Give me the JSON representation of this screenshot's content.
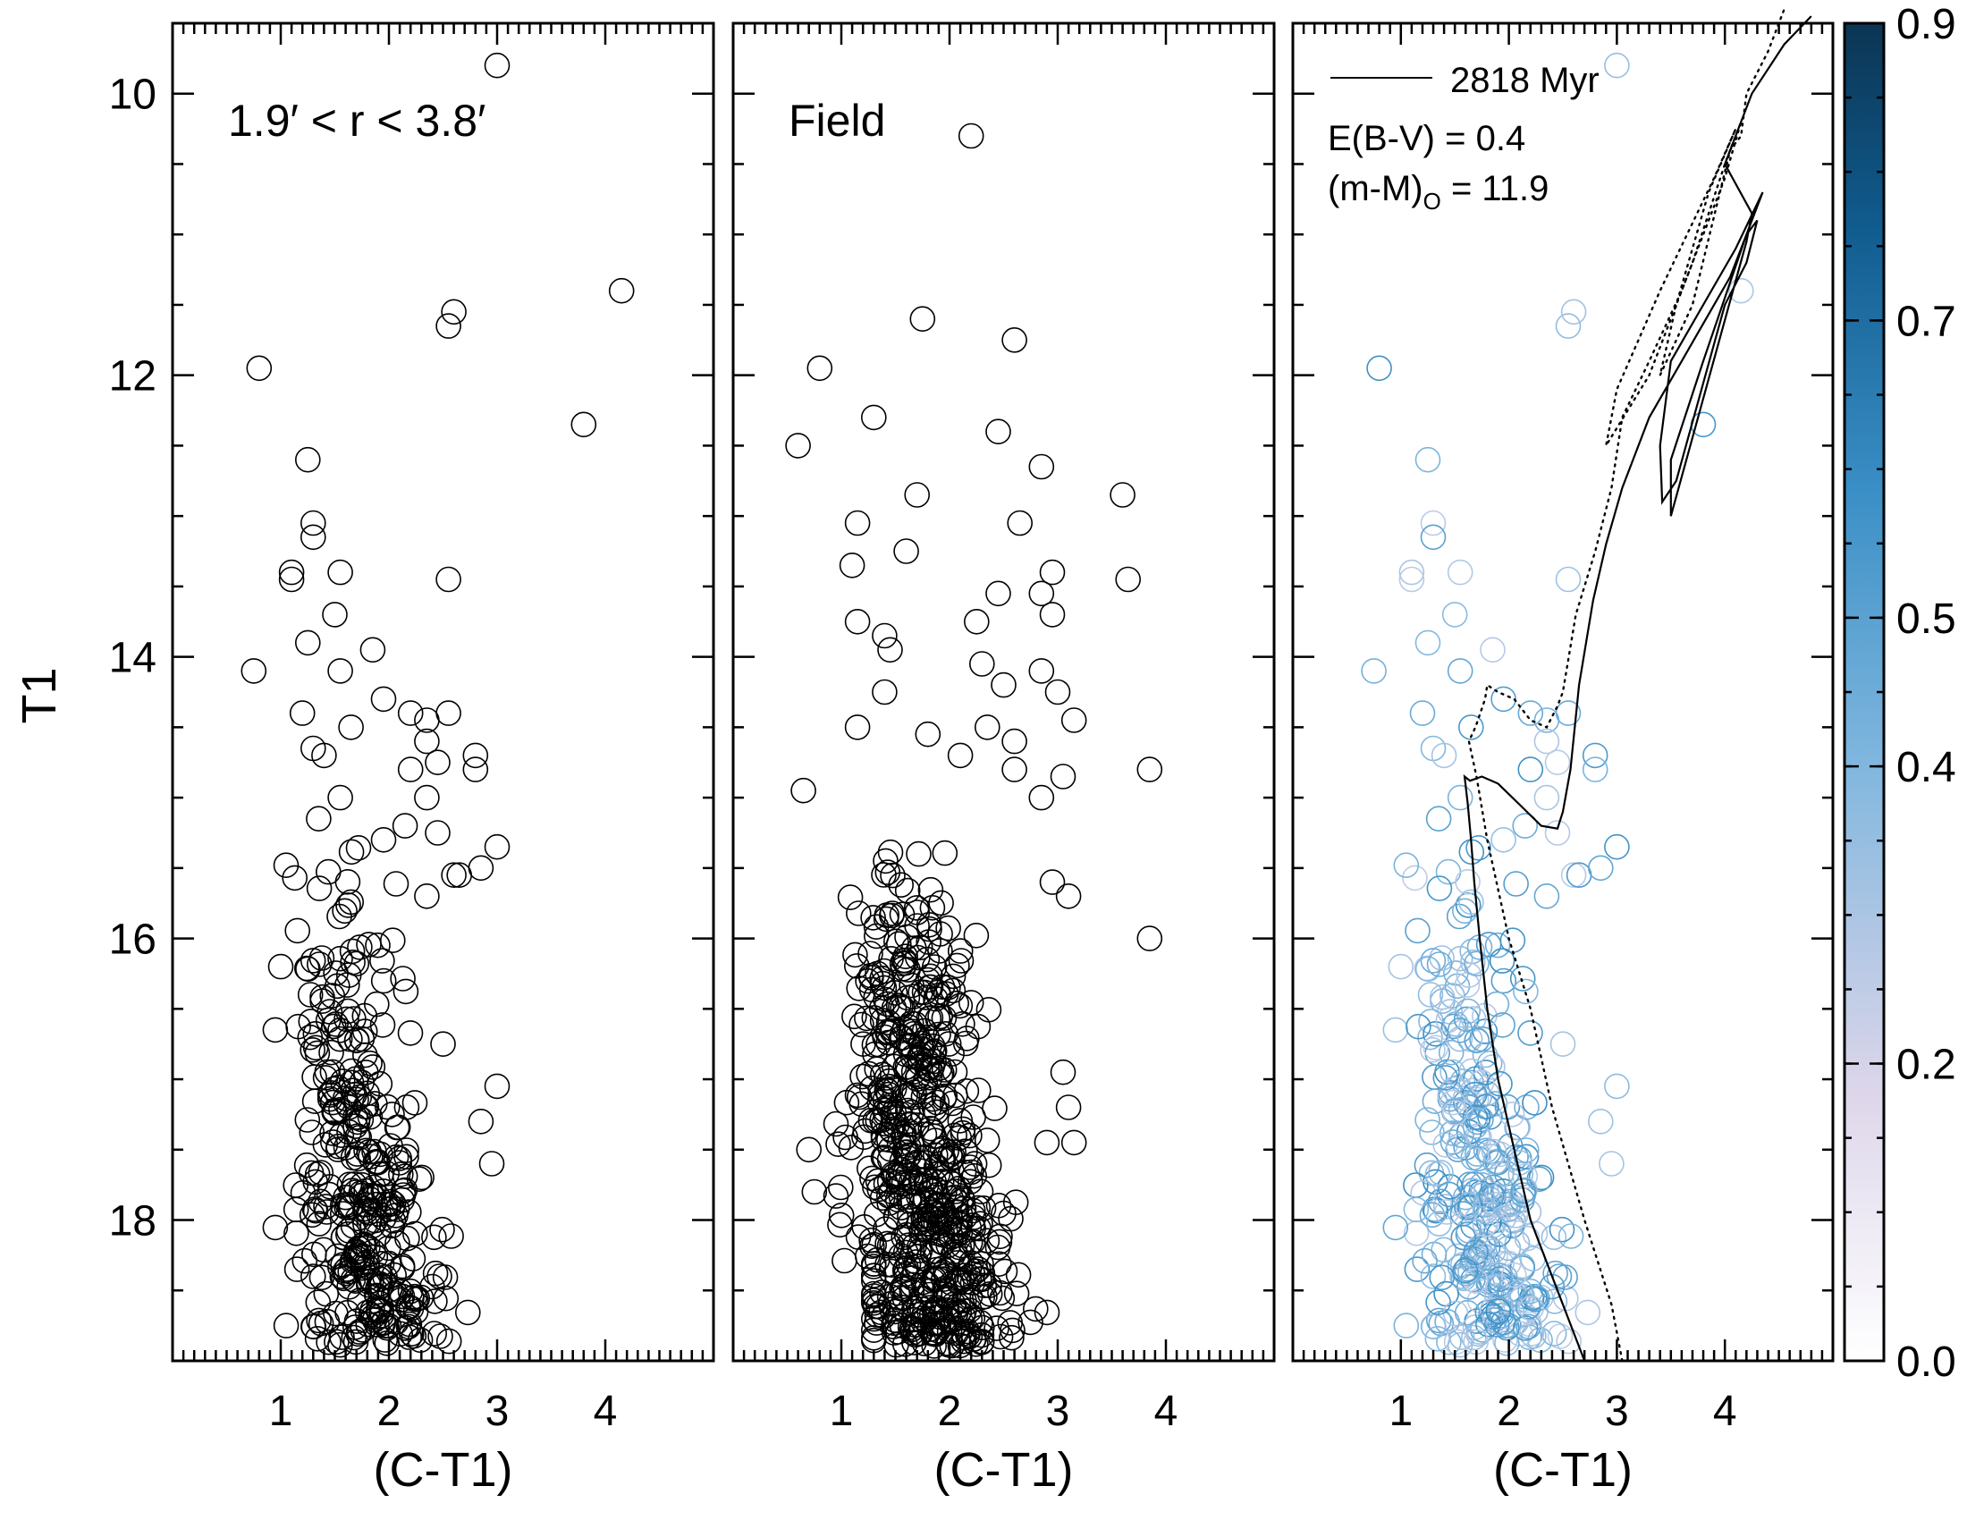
{
  "figure": {
    "y_axis_title": "T1",
    "x_axis_title": "(C-T1)"
  },
  "panels": [
    {
      "id": "annulus",
      "label": "1.9′ < r < 3.8′",
      "colored": false
    },
    {
      "id": "field",
      "label": "Field",
      "colored": false
    },
    {
      "id": "decontaminated",
      "label": "",
      "colored": true,
      "legend": {
        "line_label": "2818 Myr",
        "ebv": "E(B-V) = 0.4",
        "dm": "(m-M)",
        "dm_sub": "O",
        "dm_value": " = 11.9"
      }
    }
  ],
  "colorbar": {
    "tick_labels": [
      "0.0",
      "0.2",
      "0.4",
      "0.5",
      "0.7",
      "0.9"
    ],
    "tick_values": [
      0.0,
      0.2,
      0.4,
      0.5,
      0.7,
      0.9
    ],
    "colors": {
      "low": "#ffffff",
      "mid": "#5ea8d8",
      "high": "#0b3553"
    }
  },
  "chart_data": {
    "type": "scatter",
    "x_label": "(C-T1)",
    "y_label": "T1",
    "xlim": [
      0,
      5
    ],
    "ylim": [
      19,
      9.5
    ],
    "y_inverted": true,
    "x_ticks": [
      1,
      2,
      3,
      4
    ],
    "y_ticks": [
      10,
      12,
      14,
      16,
      18
    ],
    "isochrone": {
      "name": "2818 Myr",
      "ebv": 0.4,
      "dm0": 11.9
    },
    "seed_cluster": 7,
    "seed_field": 13,
    "cluster_bright_stars": [
      [
        3.0,
        9.8
      ],
      [
        0.8,
        11.95
      ],
      [
        4.15,
        11.4
      ],
      [
        3.8,
        12.35
      ],
      [
        2.55,
        11.65
      ],
      [
        2.6,
        11.55
      ],
      [
        1.25,
        12.6
      ],
      [
        1.3,
        13.05
      ],
      [
        1.3,
        13.15
      ],
      [
        1.1,
        13.4
      ],
      [
        1.1,
        13.45
      ],
      [
        1.55,
        13.4
      ],
      [
        2.55,
        13.45
      ],
      [
        0.75,
        14.1
      ],
      [
        1.5,
        13.7
      ],
      [
        1.85,
        13.95
      ],
      [
        1.25,
        13.9
      ],
      [
        1.55,
        14.1
      ],
      [
        1.95,
        14.3
      ],
      [
        1.2,
        14.4
      ],
      [
        1.65,
        14.5
      ],
      [
        2.2,
        14.4
      ],
      [
        2.35,
        14.45
      ],
      [
        2.55,
        14.4
      ],
      [
        1.3,
        14.65
      ],
      [
        1.4,
        14.7
      ],
      [
        2.35,
        14.6
      ],
      [
        2.2,
        14.8
      ],
      [
        2.45,
        14.75
      ],
      [
        2.8,
        14.7
      ],
      [
        2.8,
        14.8
      ],
      [
        1.55,
        15.0
      ],
      [
        2.35,
        15.0
      ],
      [
        1.35,
        15.15
      ],
      [
        2.15,
        15.2
      ],
      [
        2.45,
        15.25
      ],
      [
        1.95,
        15.3
      ],
      [
        2.6,
        15.55
      ],
      [
        2.65,
        15.55
      ],
      [
        2.85,
        15.5
      ],
      [
        3.0,
        15.35
      ],
      [
        2.35,
        15.7
      ],
      [
        0.95,
        16.65
      ],
      [
        1.0,
        16.2
      ],
      [
        3.0,
        17.05
      ],
      [
        2.85,
        17.3
      ],
      [
        2.95,
        17.6
      ],
      [
        2.5,
        16.75
      ],
      [
        1.05,
        18.75
      ],
      [
        1.15,
        18.35
      ]
    ],
    "field_bright_stars": [
      [
        2.2,
        10.3
      ],
      [
        0.8,
        11.95
      ],
      [
        1.75,
        11.6
      ],
      [
        2.6,
        11.75
      ],
      [
        0.6,
        12.5
      ],
      [
        1.3,
        12.3
      ],
      [
        2.45,
        12.4
      ],
      [
        2.85,
        12.65
      ],
      [
        1.7,
        12.85
      ],
      [
        3.6,
        12.85
      ],
      [
        1.15,
        13.05
      ],
      [
        2.65,
        13.05
      ],
      [
        1.6,
        13.25
      ],
      [
        1.1,
        13.35
      ],
      [
        2.95,
        13.4
      ],
      [
        3.65,
        13.45
      ],
      [
        2.45,
        13.55
      ],
      [
        2.85,
        13.55
      ],
      [
        2.95,
        13.7
      ],
      [
        1.15,
        13.75
      ],
      [
        2.25,
        13.75
      ],
      [
        1.4,
        13.85
      ],
      [
        1.45,
        13.95
      ],
      [
        2.85,
        14.1
      ],
      [
        2.3,
        14.05
      ],
      [
        2.5,
        14.2
      ],
      [
        3.0,
        14.25
      ],
      [
        1.4,
        14.25
      ],
      [
        2.35,
        14.5
      ],
      [
        1.15,
        14.5
      ],
      [
        3.15,
        14.45
      ],
      [
        1.8,
        14.55
      ],
      [
        2.6,
        14.6
      ],
      [
        2.1,
        14.7
      ],
      [
        2.6,
        14.8
      ],
      [
        3.85,
        14.8
      ],
      [
        0.65,
        14.95
      ],
      [
        3.05,
        14.85
      ],
      [
        2.85,
        15.0
      ],
      [
        3.1,
        15.7
      ],
      [
        2.95,
        15.6
      ],
      [
        3.05,
        16.95
      ],
      [
        3.85,
        16.0
      ],
      [
        3.1,
        17.2
      ],
      [
        3.15,
        17.45
      ],
      [
        2.9,
        17.45
      ],
      [
        0.75,
        17.8
      ],
      [
        0.7,
        17.5
      ]
    ],
    "cluster_main_sequence_count": 360,
    "field_main_sequence_count": 640,
    "isochrone_solid_curve": [
      [
        2.7,
        19.0
      ],
      [
        2.45,
        18.5
      ],
      [
        2.2,
        18.0
      ],
      [
        2.05,
        17.5
      ],
      [
        1.9,
        17.0
      ],
      [
        1.8,
        16.5
      ],
      [
        1.73,
        16.0
      ],
      [
        1.68,
        15.6
      ],
      [
        1.65,
        15.3
      ],
      [
        1.62,
        15.05
      ],
      [
        1.59,
        14.85
      ],
      [
        1.64,
        14.88
      ],
      [
        1.75,
        14.85
      ],
      [
        1.9,
        14.9
      ],
      [
        2.1,
        15.05
      ],
      [
        2.3,
        15.2
      ],
      [
        2.45,
        15.22
      ],
      [
        2.5,
        15.1
      ],
      [
        2.57,
        14.8
      ],
      [
        2.65,
        14.2
      ],
      [
        2.78,
        13.6
      ],
      [
        2.9,
        13.2
      ],
      [
        3.05,
        12.8
      ],
      [
        3.3,
        12.3
      ],
      [
        3.6,
        11.9
      ],
      [
        4.05,
        11.3
      ],
      [
        4.2,
        11.0
      ],
      [
        4.35,
        10.7
      ],
      [
        4.1,
        11.1
      ],
      [
        3.8,
        11.5
      ],
      [
        3.5,
        11.9
      ],
      [
        3.4,
        12.5
      ],
      [
        3.42,
        12.9
      ],
      [
        3.55,
        12.75
      ],
      [
        4.0,
        11.5
      ],
      [
        4.2,
        11.2
      ],
      [
        4.3,
        10.9
      ],
      [
        4.2,
        11.0
      ],
      [
        3.8,
        11.9
      ],
      [
        3.5,
        12.6
      ],
      [
        3.5,
        13.0
      ],
      [
        4.2,
        11.05
      ],
      [
        4.25,
        10.85
      ],
      [
        4.0,
        10.5
      ],
      [
        4.25,
        10.0
      ],
      [
        4.55,
        9.65
      ],
      [
        4.8,
        9.45
      ]
    ],
    "isochrone_dotted_curve": [
      [
        3.05,
        19.0
      ],
      [
        2.95,
        18.6
      ],
      [
        2.7,
        18.0
      ],
      [
        2.4,
        17.2
      ],
      [
        2.2,
        16.5
      ],
      [
        2.0,
        16.0
      ],
      [
        1.8,
        15.3
      ],
      [
        1.7,
        14.85
      ],
      [
        1.63,
        14.6
      ],
      [
        1.69,
        14.5
      ],
      [
        1.78,
        14.3
      ],
      [
        1.8,
        14.2
      ],
      [
        1.9,
        14.25
      ],
      [
        2.05,
        14.3
      ],
      [
        2.2,
        14.45
      ],
      [
        2.35,
        14.5
      ],
      [
        2.45,
        14.35
      ],
      [
        2.5,
        14.25
      ],
      [
        2.62,
        13.7
      ],
      [
        2.8,
        13.25
      ],
      [
        2.95,
        12.8
      ],
      [
        3.05,
        12.3
      ],
      [
        3.3,
        11.9
      ],
      [
        3.6,
        11.4
      ],
      [
        4.0,
        10.6
      ],
      [
        4.15,
        10.2
      ],
      [
        4.0,
        10.5
      ],
      [
        3.7,
        11.2
      ],
      [
        3.3,
        12.0
      ],
      [
        2.9,
        12.5
      ],
      [
        3.0,
        12.1
      ],
      [
        3.4,
        11.4
      ],
      [
        3.9,
        10.6
      ],
      [
        4.1,
        10.25
      ],
      [
        3.85,
        10.7
      ],
      [
        3.55,
        11.5
      ],
      [
        3.4,
        12.0
      ],
      [
        3.7,
        11.5
      ],
      [
        4.05,
        10.4
      ],
      [
        4.15,
        10.3
      ],
      [
        4.2,
        10.0
      ],
      [
        4.4,
        9.7
      ],
      [
        4.55,
        9.4
      ]
    ]
  }
}
